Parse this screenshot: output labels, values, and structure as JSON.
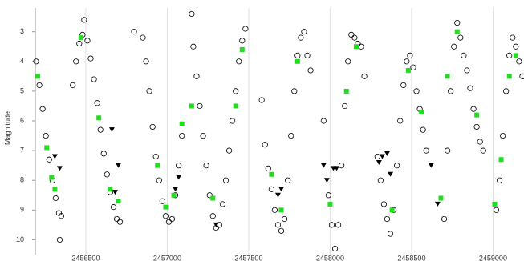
{
  "chart_data": {
    "type": "scatter",
    "y_label": "Magnitude",
    "xlim": [
      2456190,
      2459190
    ],
    "ylim": [
      10.5,
      2.2
    ],
    "xticks": [
      2456500,
      2457000,
      2457500,
      2458000,
      2458500,
      2459000
    ],
    "yticks": [
      3,
      4,
      5,
      6,
      7,
      8,
      9,
      10
    ],
    "grid": true,
    "series": [
      {
        "color": "#000000",
        "marker": "circle",
        "x": [
          2456195,
          2456215,
          2456235,
          2456255,
          2456275,
          2456295,
          2456315,
          2456335,
          2456350,
          2456340,
          2456420,
          2456440,
          2456460,
          2456480,
          2456490,
          2456510,
          2456530,
          2456550,
          2456570,
          2456590,
          2456610,
          2456630,
          2456650,
          2456670,
          2456690,
          2456710,
          2456796,
          2456850,
          2456870,
          2456890,
          2456910,
          2456930,
          2456950,
          2456970,
          2456990,
          2457010,
          2457030,
          2457050,
          2457070,
          2457090,
          2457150,
          2457160,
          2457180,
          2457200,
          2457220,
          2457240,
          2457260,
          2457280,
          2457300,
          2457320,
          2457340,
          2457360,
          2457380,
          2457400,
          2457420,
          2457440,
          2457460,
          2457480,
          2457580,
          2457600,
          2457620,
          2457640,
          2457660,
          2457680,
          2457700,
          2457720,
          2457740,
          2457760,
          2457780,
          2457800,
          2457820,
          2457840,
          2457860,
          2457880,
          2457960,
          2457990,
          2458010,
          2458030,
          2458050,
          2458070,
          2458090,
          2458110,
          2458130,
          2458150,
          2458170,
          2458190,
          2458210,
          2458290,
          2458310,
          2458330,
          2458350,
          2458370,
          2458390,
          2458410,
          2458430,
          2458450,
          2458470,
          2458490,
          2458510,
          2458530,
          2458550,
          2458570,
          2458590,
          2458700,
          2458720,
          2458740,
          2458760,
          2458780,
          2458800,
          2458820,
          2458840,
          2458860,
          2458880,
          2458900,
          2458920,
          2458940,
          2459020,
          2459040,
          2459060,
          2459080,
          2459100,
          2459120,
          2459140,
          2459160,
          2459180
        ],
        "values": [
          4.0,
          4.8,
          5.6,
          6.5,
          7.3,
          8.0,
          8.6,
          9.1,
          9.2,
          10.0,
          4.8,
          4.0,
          3.4,
          3.1,
          2.6,
          3.3,
          3.9,
          4.6,
          5.4,
          6.3,
          7.1,
          7.8,
          8.4,
          8.9,
          9.3,
          9.4,
          3.0,
          3.2,
          4.0,
          5.0,
          6.2,
          7.2,
          8.0,
          8.7,
          9.2,
          9.4,
          9.3,
          8.5,
          7.5,
          6.5,
          2.4,
          3.5,
          4.5,
          5.5,
          6.5,
          7.5,
          8.5,
          9.2,
          9.6,
          9.5,
          8.8,
          8.0,
          7.0,
          6.0,
          5.0,
          4.0,
          3.3,
          2.9,
          5.3,
          6.8,
          7.6,
          8.3,
          9.0,
          9.5,
          9.7,
          9.3,
          8.0,
          6.5,
          5.0,
          3.8,
          3.2,
          3.0,
          3.8,
          4.3,
          6.0,
          8.5,
          9.5,
          10.3,
          9.5,
          7.5,
          5.5,
          4.0,
          3.1,
          3.2,
          3.4,
          3.5,
          4.5,
          7.2,
          8.0,
          8.8,
          9.3,
          9.8,
          9.0,
          7.5,
          6.0,
          4.8,
          4.0,
          3.8,
          4.2,
          5.0,
          5.6,
          6.3,
          7.0,
          9.3,
          7.0,
          5.0,
          3.5,
          2.7,
          3.2,
          3.8,
          4.3,
          4.9,
          5.6,
          6.2,
          6.7,
          7.0,
          9.0,
          8.0,
          6.5,
          5.0,
          3.8,
          3.2,
          3.5,
          4.0,
          4.5
        ]
      },
      {
        "color": "#22dd22",
        "marker": "square",
        "x": [
          2456205,
          2456260,
          2456290,
          2456310,
          2456470,
          2456580,
          2456650,
          2456700,
          2456940,
          2456990,
          2457040,
          2457090,
          2457150,
          2457280,
          2457420,
          2457460,
          2457640,
          2457700,
          2457800,
          2458000,
          2458100,
          2458160,
          2458380,
          2458480,
          2458560,
          2458680,
          2458720,
          2458780,
          2458900,
          2459010,
          2459050,
          2459100,
          2459140
        ],
        "values": [
          4.5,
          6.9,
          7.9,
          8.3,
          3.2,
          5.9,
          8.3,
          8.7,
          7.5,
          8.9,
          8.5,
          6.1,
          5.5,
          8.6,
          5.5,
          3.6,
          7.8,
          9.0,
          4.0,
          8.8,
          5.0,
          3.5,
          9.0,
          4.3,
          5.7,
          8.6,
          4.5,
          3.0,
          5.8,
          8.8,
          7.3,
          4.5,
          3.8
        ]
      },
      {
        "color": "#000000",
        "marker": "triangle-down",
        "x": [
          2456310,
          2456340,
          2456660,
          2456680,
          2456700,
          2457050,
          2457070,
          2457300,
          2457680,
          2457700,
          2457960,
          2457980,
          2458020,
          2458040,
          2458300,
          2458320,
          2458350,
          2458370,
          2458620,
          2458660
        ],
        "values": [
          7.2,
          7.6,
          6.3,
          8.4,
          7.5,
          8.3,
          7.9,
          9.5,
          8.5,
          8.3,
          7.5,
          8.0,
          7.6,
          7.6,
          7.4,
          7.2,
          7.1,
          7.8,
          7.5,
          8.8
        ]
      }
    ]
  }
}
